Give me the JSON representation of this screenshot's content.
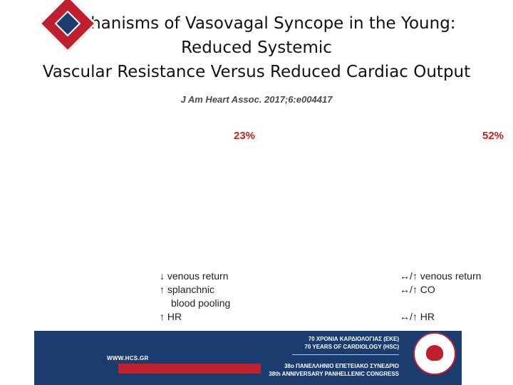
{
  "title": {
    "line1": "Mechanisms of Vasovagal Syncope in the Young:",
    "line2": "Reduced Systemic",
    "line3": "Vascular Resistance Versus Reduced Cardiac Output"
  },
  "citation": "J Am Heart Assoc. 2017;6:e004417",
  "left_column": {
    "percent": "23%",
    "items": [
      "↓ venous return",
      "↑ splanchnic",
      "blood pooling",
      "↑ HR"
    ]
  },
  "right_column": {
    "percent": "52%",
    "items": [
      "↔/↑ venous return",
      "↔/↑ CO",
      "↔/↑ HR"
    ]
  },
  "footer": {
    "website": "WWW.HCS.GR",
    "line1": "70 ΧΡΟΝΙΑ ΚΑΡΔΙΟΛΟΓΙΑΣ (ΕΚΕ)",
    "line2": "70 YEARS OF CARDIOLOGY (HSC)",
    "line3": "38ο ΠΑΝΕΛΛΗΝΙΟ ΕΠΕΤΕΙΑΚΟ ΣΥΝΕΔΡΙΟ",
    "line4": "38th ANNIVERSARY PANHELLENIC CONGRESS",
    "colors": {
      "navy": "#1b3c6e",
      "red": "#c01f2e",
      "percent_red": "#c0261c"
    }
  }
}
